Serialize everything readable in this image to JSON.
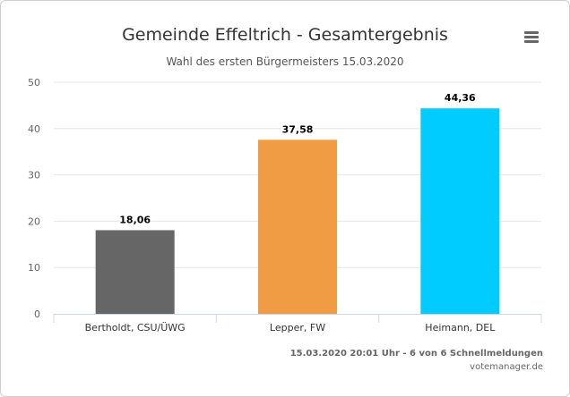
{
  "title": "Gemeinde Effeltrich - Gesamtergebnis",
  "subtitle": "Wahl des ersten Bürgermeisters 15.03.2020",
  "menu_icon": "hamburger-menu-icon",
  "credits": {
    "status": "15.03.2020 20:01 Uhr - 6 von 6 Schnellmeldungen",
    "site": "votemanager.de"
  },
  "chart_data": {
    "type": "bar",
    "categories": [
      "Bertholdt, CSU/ÜWG",
      "Lepper, FW",
      "Heimann, DEL"
    ],
    "values": [
      18.06,
      37.58,
      44.36
    ],
    "value_labels": [
      "18,06",
      "37,58",
      "44,36"
    ],
    "colors": [
      "#666666",
      "#f09c44",
      "#00ccff"
    ],
    "ylim": [
      0,
      50
    ],
    "yticks": [
      0,
      10,
      20,
      30,
      40,
      50
    ],
    "grid": true,
    "xlabel": "",
    "ylabel": ""
  }
}
